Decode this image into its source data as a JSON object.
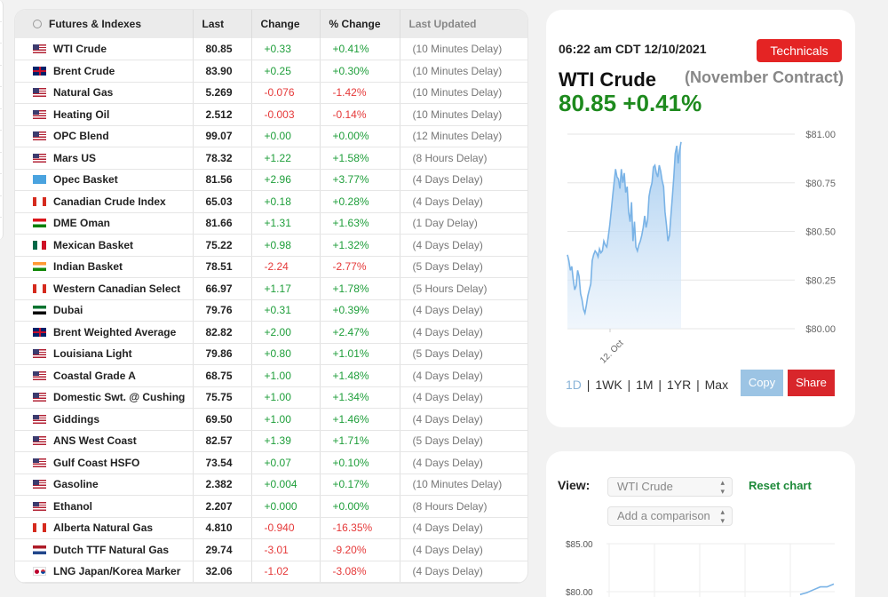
{
  "table": {
    "headers": [
      "Futures & Indexes",
      "Last",
      "Change",
      "% Change",
      "Last Updated"
    ],
    "rows": [
      {
        "flag": "us",
        "name": "WTI Crude",
        "last": "80.85",
        "change": "+0.33",
        "pct": "+0.41%",
        "updated": "(10 Minutes Delay)",
        "dir": "pos"
      },
      {
        "flag": "uk",
        "name": "Brent Crude",
        "last": "83.90",
        "change": "+0.25",
        "pct": "+0.30%",
        "updated": "(10 Minutes Delay)",
        "dir": "pos"
      },
      {
        "flag": "us",
        "name": "Natural Gas",
        "last": "5.269",
        "change": "-0.076",
        "pct": "-1.42%",
        "updated": "(10 Minutes Delay)",
        "dir": "neg"
      },
      {
        "flag": "us",
        "name": "Heating Oil",
        "last": "2.512",
        "change": "-0.003",
        "pct": "-0.14%",
        "updated": "(10 Minutes Delay)",
        "dir": "neg"
      },
      {
        "flag": "us",
        "name": "OPC Blend",
        "last": "99.07",
        "change": "+0.00",
        "pct": "+0.00%",
        "updated": "(12 Minutes Delay)",
        "dir": "pos"
      },
      {
        "flag": "us",
        "name": "Mars US",
        "last": "78.32",
        "change": "+1.22",
        "pct": "+1.58%",
        "updated": "(8 Hours Delay)",
        "dir": "pos"
      },
      {
        "flag": "opec",
        "name": "Opec Basket",
        "last": "81.56",
        "change": "+2.96",
        "pct": "+3.77%",
        "updated": "(4 Days Delay)",
        "dir": "pos"
      },
      {
        "flag": "ca",
        "name": "Canadian Crude Index",
        "last": "65.03",
        "change": "+0.18",
        "pct": "+0.28%",
        "updated": "(4 Days Delay)",
        "dir": "pos"
      },
      {
        "flag": "om",
        "name": "DME Oman",
        "last": "81.66",
        "change": "+1.31",
        "pct": "+1.63%",
        "updated": "(1 Day Delay)",
        "dir": "pos"
      },
      {
        "flag": "mx",
        "name": "Mexican Basket",
        "last": "75.22",
        "change": "+0.98",
        "pct": "+1.32%",
        "updated": "(4 Days Delay)",
        "dir": "pos"
      },
      {
        "flag": "in",
        "name": "Indian Basket",
        "last": "78.51",
        "change": "-2.24",
        "pct": "-2.77%",
        "updated": "(5 Days Delay)",
        "dir": "neg"
      },
      {
        "flag": "ca",
        "name": "Western Canadian Select",
        "last": "66.97",
        "change": "+1.17",
        "pct": "+1.78%",
        "updated": "(5 Hours Delay)",
        "dir": "pos"
      },
      {
        "flag": "ae",
        "name": "Dubai",
        "last": "79.76",
        "change": "+0.31",
        "pct": "+0.39%",
        "updated": "(4 Days Delay)",
        "dir": "pos"
      },
      {
        "flag": "uk",
        "name": "Brent Weighted Average",
        "last": "82.82",
        "change": "+2.00",
        "pct": "+2.47%",
        "updated": "(4 Days Delay)",
        "dir": "pos"
      },
      {
        "flag": "us",
        "name": "Louisiana Light",
        "last": "79.86",
        "change": "+0.80",
        "pct": "+1.01%",
        "updated": "(5 Days Delay)",
        "dir": "pos"
      },
      {
        "flag": "us",
        "name": "Coastal Grade A",
        "last": "68.75",
        "change": "+1.00",
        "pct": "+1.48%",
        "updated": "(4 Days Delay)",
        "dir": "pos"
      },
      {
        "flag": "us",
        "name": "Domestic Swt. @ Cushing",
        "last": "75.75",
        "change": "+1.00",
        "pct": "+1.34%",
        "updated": "(4 Days Delay)",
        "dir": "pos"
      },
      {
        "flag": "us",
        "name": "Giddings",
        "last": "69.50",
        "change": "+1.00",
        "pct": "+1.46%",
        "updated": "(4 Days Delay)",
        "dir": "pos"
      },
      {
        "flag": "us",
        "name": "ANS West Coast",
        "last": "82.57",
        "change": "+1.39",
        "pct": "+1.71%",
        "updated": "(5 Days Delay)",
        "dir": "pos"
      },
      {
        "flag": "us",
        "name": "Gulf Coast HSFO",
        "last": "73.54",
        "change": "+0.07",
        "pct": "+0.10%",
        "updated": "(4 Days Delay)",
        "dir": "pos"
      },
      {
        "flag": "us",
        "name": "Gasoline",
        "last": "2.382",
        "change": "+0.004",
        "pct": "+0.17%",
        "updated": "(10 Minutes Delay)",
        "dir": "pos"
      },
      {
        "flag": "us",
        "name": "Ethanol",
        "last": "2.207",
        "change": "+0.000",
        "pct": "+0.00%",
        "updated": "(8 Hours Delay)",
        "dir": "pos"
      },
      {
        "flag": "ca",
        "name": "Alberta Natural Gas",
        "last": "4.810",
        "change": "-0.940",
        "pct": "-16.35%",
        "updated": "(4 Days Delay)",
        "dir": "neg"
      },
      {
        "flag": "nl",
        "name": "Dutch TTF Natural Gas",
        "last": "29.74",
        "change": "-3.01",
        "pct": "-9.20%",
        "updated": "(4 Days Delay)",
        "dir": "neg"
      },
      {
        "flag": "jpkr",
        "name": "LNG Japan/Korea Marker",
        "last": "32.06",
        "change": "-1.02",
        "pct": "-3.08%",
        "updated": "(4 Days Delay)",
        "dir": "neg"
      }
    ]
  },
  "quote": {
    "timestamp": "06:22 am CDT 12/10/2021",
    "technicals_label": "Technicals",
    "title": "WTI Crude",
    "contract": "(November Contract)",
    "price": "80.85",
    "pct": "+0.41%",
    "ranges": [
      "1D",
      "1WK",
      "1M",
      "1YR",
      "Max"
    ],
    "copy_label": "Copy",
    "share_label": "Share",
    "colors": {
      "up": "#1e8a1e",
      "accent": "#e42424",
      "line": "#7ab3e6"
    }
  },
  "compare": {
    "view_label": "View:",
    "selected": "WTI Crude",
    "comparison_placeholder": "Add a comparison",
    "reset_label": "Reset chart",
    "y_ticks": [
      "$85.00",
      "$80.00"
    ]
  },
  "chart_data": [
    {
      "type": "area",
      "title": "",
      "xlabel": "",
      "ylabel": "",
      "y_ticks": [
        "$81.00",
        "$80.75",
        "$80.50",
        "$80.25",
        "$80.00"
      ],
      "ylim": [
        80.0,
        81.0
      ],
      "x_tick_labels": [
        "12. Oct"
      ],
      "series": [
        {
          "values": [
            80.38,
            80.35,
            80.3,
            80.32,
            80.25,
            80.2,
            80.22,
            80.3,
            80.27,
            80.18,
            80.15,
            80.1,
            80.08,
            80.12,
            80.17,
            80.2,
            80.23,
            80.35,
            80.38,
            80.4,
            80.39,
            80.37,
            80.41,
            80.39,
            80.4,
            80.45,
            80.43,
            80.42,
            80.47,
            80.53,
            80.6,
            80.68,
            80.75,
            80.82,
            80.78,
            80.77,
            80.72,
            80.82,
            80.75,
            80.8,
            80.7,
            80.73,
            80.6,
            80.55,
            80.65,
            80.45,
            80.55,
            80.42,
            80.4,
            80.43,
            80.45,
            80.48,
            80.52,
            80.58,
            80.52,
            80.56,
            80.68,
            80.72,
            80.75,
            80.83,
            80.84,
            80.8,
            80.78,
            80.84,
            80.81,
            80.76,
            80.73,
            80.6,
            80.53,
            80.45,
            80.48,
            80.58,
            80.68,
            80.78,
            80.9,
            80.94,
            80.85,
            80.92,
            80.96
          ]
        }
      ]
    },
    {
      "type": "line",
      "title": "",
      "y_ticks": [
        "$85.00",
        "$80.00"
      ],
      "ylim": [
        79.0,
        86.0
      ],
      "series": [
        {
          "values": [
            79.7,
            79.9,
            80.2,
            80.5,
            80.5,
            80.8
          ]
        }
      ]
    }
  ]
}
